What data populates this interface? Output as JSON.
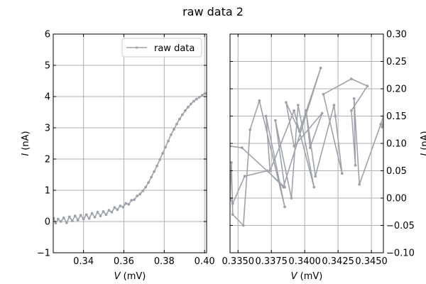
{
  "figure": {
    "title": "raw data 2"
  },
  "colors": {
    "series": "#9ea3ab",
    "grid": "#b0b0b0",
    "axes": "#000000"
  },
  "chart_data": [
    {
      "type": "line",
      "title": "",
      "xlabel": "V (mV)",
      "ylabel": "I (nA)",
      "xlim": [
        0.325,
        0.401
      ],
      "ylim": [
        -1,
        6
      ],
      "xticks": [
        0.34,
        0.36,
        0.38,
        0.4
      ],
      "xtick_labels": [
        "0.34",
        "0.36",
        "0.38",
        "0.40"
      ],
      "yticks": [
        -1,
        0,
        1,
        2,
        3,
        4,
        5,
        6
      ],
      "ytick_labels": [
        "−1",
        "0",
        "1",
        "2",
        "3",
        "4",
        "5",
        "6"
      ],
      "grid": true,
      "legend": {
        "position": "top-right",
        "entries": [
          "raw data"
        ]
      },
      "series": [
        {
          "name": "raw data",
          "x": [
            0.3252,
            0.3262,
            0.3274,
            0.3288,
            0.3302,
            0.3316,
            0.333,
            0.3344,
            0.3358,
            0.3372,
            0.3386,
            0.34,
            0.3414,
            0.3428,
            0.3442,
            0.3456,
            0.347,
            0.3484,
            0.3498,
            0.3512,
            0.3526,
            0.354,
            0.3554,
            0.3568,
            0.3582,
            0.3596,
            0.361,
            0.3624,
            0.3638,
            0.3652,
            0.3666,
            0.368,
            0.3694,
            0.3708,
            0.3722,
            0.3736,
            0.375,
            0.3764,
            0.3778,
            0.3792,
            0.3806,
            0.382,
            0.3834,
            0.3848,
            0.3862,
            0.3876,
            0.389,
            0.3904,
            0.3918,
            0.3932,
            0.3946,
            0.396,
            0.3974,
            0.3988,
            0.4002
          ],
          "y": [
            0.1,
            -0.05,
            0.08,
            0.0,
            0.12,
            -0.04,
            0.15,
            0.02,
            0.18,
            0.05,
            0.2,
            0.08,
            0.22,
            0.1,
            0.26,
            0.14,
            0.3,
            0.18,
            0.32,
            0.22,
            0.36,
            0.3,
            0.45,
            0.38,
            0.5,
            0.46,
            0.58,
            0.55,
            0.68,
            0.7,
            0.82,
            0.88,
            0.98,
            1.1,
            1.25,
            1.42,
            1.6,
            1.78,
            1.98,
            2.18,
            2.38,
            2.58,
            2.78,
            2.95,
            3.12,
            3.28,
            3.42,
            3.55,
            3.66,
            3.76,
            3.85,
            3.92,
            3.98,
            4.04,
            4.1
          ]
        }
      ]
    },
    {
      "type": "line",
      "title": "",
      "xlabel": "V (mV)",
      "ylabel": "I (nA)",
      "xlim": [
        0.3344,
        0.3459
      ],
      "ylim": [
        -0.1,
        0.3
      ],
      "xticks": [
        0.335,
        0.3375,
        0.34,
        0.3425,
        0.345
      ],
      "xtick_labels": [
        "0.3350",
        "0.3375",
        "0.3400",
        "0.3425",
        "0.3450"
      ],
      "yticks": [
        -0.1,
        -0.05,
        0.0,
        0.05,
        0.1,
        0.15,
        0.2,
        0.25,
        0.3
      ],
      "ytick_labels": [
        "−0.10",
        "−0.05",
        "0.00",
        "0.05",
        "0.10",
        "0.15",
        "0.20",
        "0.25",
        "0.30"
      ],
      "grid": true,
      "series": [
        {
          "name": "",
          "x": [
            0.3344,
            0.3353,
            0.3385,
            0.3378,
            0.339,
            0.3395,
            0.3407,
            0.3392,
            0.3374,
            0.3371,
            0.3385,
            0.3366,
            0.3359,
            0.3354,
            0.3346,
            0.3345,
            0.3344,
            0.3346,
            0.3355,
            0.3372,
            0.3384,
            0.3412,
            0.3396,
            0.3386,
            0.3392,
            0.3413,
            0.3404,
            0.3401,
            0.3408,
            0.3422,
            0.3423,
            0.3428,
            0.3414,
            0.3435,
            0.3447,
            0.3435,
            0.3438,
            0.3437,
            0.3441,
            0.3457,
            0.3461,
            0.3458
          ],
          "y": [
            0.095,
            0.092,
            0.02,
            0.142,
            0.0,
            0.17,
            0.02,
            0.16,
            0.05,
            0.15,
            -0.016,
            0.178,
            0.125,
            -0.05,
            -0.03,
            0.065,
            0.0,
            -0.01,
            0.04,
            0.05,
            0.02,
            0.238,
            0.122,
            0.175,
            0.095,
            0.155,
            0.092,
            0.16,
            0.04,
            0.17,
            0.15,
            0.045,
            0.19,
            0.218,
            0.205,
            0.16,
            0.06,
            0.182,
            0.025,
            0.135,
            0.165,
            0.13
          ]
        }
      ]
    }
  ]
}
